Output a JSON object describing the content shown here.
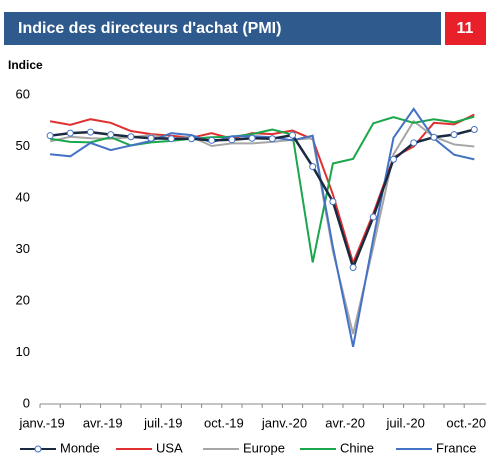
{
  "chart_data": {
    "type": "line",
    "title": "Indice des directeurs d'achat (PMI)",
    "page_number": "11",
    "y_label": "Indice",
    "categories": [
      "janv.-19",
      null,
      null,
      "avr.-19",
      null,
      null,
      "juil.-19",
      null,
      null,
      "oct.-19",
      null,
      null,
      "janv.-20",
      null,
      null,
      "avr.-20",
      null,
      null,
      "juil.-20",
      null,
      null,
      "oct.-20"
    ],
    "series": [
      {
        "name": "Monde",
        "color": "#1b2a41",
        "marker": true,
        "values": [
          52.1,
          52.6,
          52.8,
          52.3,
          51.9,
          51.6,
          51.5,
          51.5,
          51.2,
          51.3,
          51.6,
          51.5,
          52.2,
          46.1,
          39.3,
          26.5,
          36.3,
          47.5,
          50.7,
          51.8,
          52.3,
          53.3
        ]
      },
      {
        "name": "USA",
        "color": "#e03030",
        "values": [
          54.9,
          54.2,
          55.3,
          54.6,
          53.0,
          52.4,
          52.1,
          51.7,
          52.6,
          51.5,
          52.6,
          52.4,
          53.1,
          51.4,
          40.7,
          27.4,
          37.0,
          47.9,
          50.0,
          54.6,
          54.3,
          56.2
        ]
      },
      {
        "name": "Europe",
        "color": "#a6a6a6",
        "values": [
          51.0,
          51.9,
          51.6,
          51.5,
          51.8,
          52.2,
          51.5,
          51.9,
          50.1,
          50.6,
          50.6,
          50.9,
          51.3,
          51.6,
          29.7,
          13.6,
          30.5,
          48.5,
          54.9,
          51.9,
          50.4,
          50.0
        ]
      },
      {
        "name": "Chine",
        "color": "#1aa64a",
        "values": [
          51.5,
          50.9,
          50.8,
          51.8,
          50.2,
          50.8,
          51.1,
          51.5,
          51.8,
          51.9,
          52.4,
          53.3,
          52.3,
          27.5,
          46.7,
          47.6,
          54.5,
          55.7,
          54.6,
          55.3,
          54.7,
          55.8
        ]
      },
      {
        "name": "France",
        "color": "#4472c4",
        "values": [
          48.5,
          48.1,
          50.7,
          49.3,
          50.2,
          51.1,
          52.6,
          52.2,
          50.8,
          52.0,
          52.0,
          51.8,
          51.2,
          52.1,
          30.5,
          11.1,
          32.1,
          51.7,
          57.3,
          51.6,
          48.4,
          47.5
        ]
      }
    ],
    "ylim": [
      0,
      60
    ],
    "yticks": [
      0,
      10,
      20,
      30,
      40,
      50,
      60
    ],
    "grid": false
  }
}
